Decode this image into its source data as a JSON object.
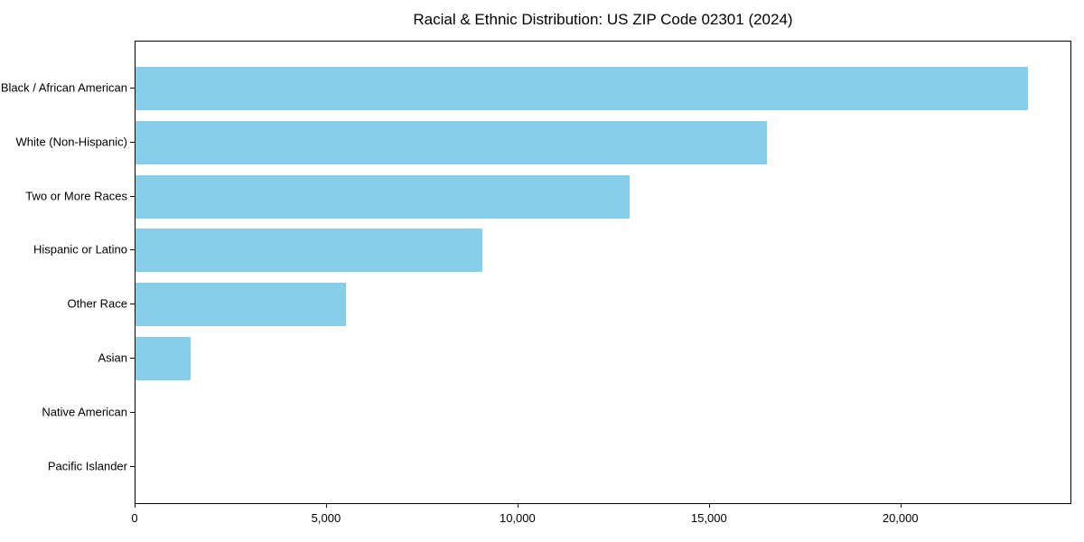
{
  "chart_data": {
    "type": "bar",
    "orientation": "horizontal",
    "title": "Racial & Ethnic Distribution: US ZIP Code 02301 (2024)",
    "categories": [
      "Black / African American",
      "White (Non-Hispanic)",
      "Two or More Races",
      "Hispanic or Latino",
      "Other Race",
      "Asian",
      "Native American",
      "Pacific Islander"
    ],
    "values": [
      23300,
      16500,
      12900,
      9050,
      5500,
      1450,
      0,
      0
    ],
    "xlabel": "",
    "ylabel": "",
    "xlim": [
      0,
      24465
    ],
    "x_ticks": [
      0,
      5000,
      10000,
      15000,
      20000
    ],
    "x_tick_labels": [
      "0",
      "5,000",
      "10,000",
      "15,000",
      "20,000"
    ],
    "bar_color": "#87CEEB",
    "background_color": "#FFFFFF",
    "axis_color": "#000000",
    "grid": false,
    "legend_position": "none"
  }
}
